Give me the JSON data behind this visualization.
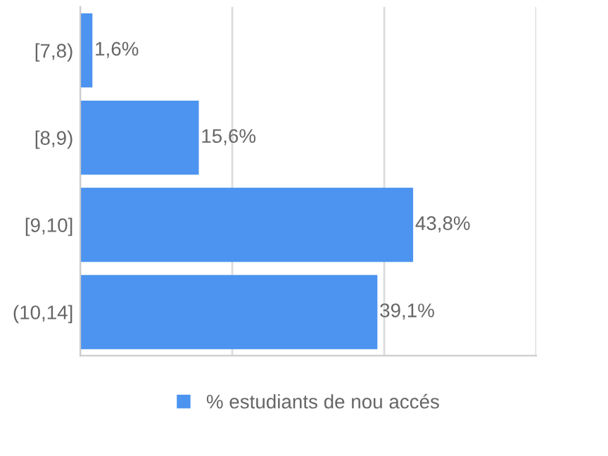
{
  "chart_data": {
    "type": "bar",
    "orientation": "horizontal",
    "categories": [
      "[7,8)",
      "[8,9)",
      "[9,10]",
      "(10,14]"
    ],
    "series": [
      {
        "name": "% estudiants de nou accés",
        "color": "#4d94f0",
        "values": [
          1.6,
          15.6,
          43.8,
          39.1
        ],
        "value_labels": [
          "1,6%",
          "15,6%",
          "43,8%",
          "39,1%"
        ]
      }
    ],
    "xlim": [
      0,
      60
    ],
    "xticks": [
      {
        "value": 0,
        "label": null
      },
      {
        "value": 20,
        "label": null
      },
      {
        "value": 40,
        "label": null
      },
      {
        "value": 60,
        "label": null
      }
    ],
    "grid": "x",
    "legend": "bottom",
    "tick_labels": "y"
  }
}
